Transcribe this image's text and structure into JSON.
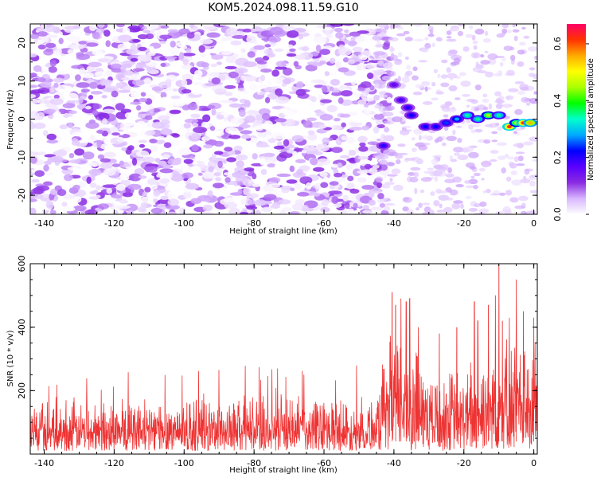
{
  "chart_data": [
    {
      "type": "heatmap",
      "title": "KOM5.2024.098.11.59.G10",
      "xlabel": "Height of straight line (km)",
      "ylabel": "Frequency (Hz)",
      "xlim": [
        -144,
        1
      ],
      "ylim": [
        -25,
        25
      ],
      "xticks": [
        "-140",
        "-120",
        "-100",
        "-80",
        "-60",
        "-40",
        "-20",
        "0"
      ],
      "yticks": [
        "-20",
        "-10",
        "0",
        "10",
        "20"
      ],
      "colorbar": {
        "label": "Normalized spectral amplitude",
        "range": [
          0.0,
          0.67
        ],
        "ticks": [
          "0.0",
          "0.2",
          "0.4",
          "0.6"
        ],
        "colormap": [
          "#ffffff",
          "#d8b6ff",
          "#8a2be2",
          "#5a00ff",
          "#0000ff",
          "#00aaff",
          "#00ffcc",
          "#00ff00",
          "#aaff00",
          "#ffff00",
          "#ffaa00",
          "#ff3300",
          "#ff0066"
        ]
      },
      "noise_region": {
        "x": [
          -144,
          -45
        ],
        "typical_amplitude": [
          0.0,
          0.12
        ]
      },
      "signal_track": [
        {
          "x": -43,
          "y": -7,
          "value": 0.2
        },
        {
          "x": -40,
          "y": 9,
          "value": 0.16
        },
        {
          "x": -38,
          "y": 5,
          "value": 0.18
        },
        {
          "x": -36,
          "y": 3,
          "value": 0.2
        },
        {
          "x": -35,
          "y": 1,
          "value": 0.22
        },
        {
          "x": -31,
          "y": -2,
          "value": 0.22
        },
        {
          "x": -28,
          "y": -2,
          "value": 0.22
        },
        {
          "x": -25,
          "y": -1,
          "value": 0.24
        },
        {
          "x": -22,
          "y": 0,
          "value": 0.28
        },
        {
          "x": -19,
          "y": 1,
          "value": 0.35
        },
        {
          "x": -16,
          "y": 0,
          "value": 0.35
        },
        {
          "x": -13,
          "y": 1,
          "value": 0.45
        },
        {
          "x": -10,
          "y": 1,
          "value": 0.35
        },
        {
          "x": -7,
          "y": -2,
          "value": 0.62
        },
        {
          "x": -5,
          "y": -1,
          "value": 0.45
        },
        {
          "x": -3,
          "y": -1,
          "value": 0.62
        },
        {
          "x": -1,
          "y": -1,
          "value": 0.55
        }
      ]
    },
    {
      "type": "line",
      "xlabel": "Height of straight line (km)",
      "ylabel": "SNR (10 * v/v)",
      "xlim": [
        -144,
        1
      ],
      "ylim": [
        0,
        600
      ],
      "xticks": [
        "-140",
        "-120",
        "-100",
        "-80",
        "-60",
        "-40",
        "-20",
        "0"
      ],
      "yticks": [
        "200",
        "400",
        "600"
      ],
      "color": "#ee3333",
      "baseline_level": {
        "x": [
          -144,
          -45
        ],
        "typical": [
          20,
          180
        ],
        "max": 290
      },
      "envelope": [
        {
          "x": -144,
          "typical_max": 190
        },
        {
          "x": -45,
          "typical_max": 200
        },
        {
          "x": -41,
          "typical_max": 420
        },
        {
          "x": -35,
          "typical_max": 430
        },
        {
          "x": -30,
          "typical_max": 300
        },
        {
          "x": -20,
          "typical_max": 300
        },
        {
          "x": -10,
          "typical_max": 420
        },
        {
          "x": 1,
          "typical_max": 380
        }
      ],
      "peaks": [
        {
          "x": -40.5,
          "y": 510
        },
        {
          "x": -39.5,
          "y": 470
        },
        {
          "x": -38,
          "y": 490
        },
        {
          "x": -36.5,
          "y": 480
        },
        {
          "x": -35.5,
          "y": 490
        },
        {
          "x": -33,
          "y": 400
        },
        {
          "x": -17,
          "y": 480
        },
        {
          "x": -16,
          "y": 420
        },
        {
          "x": -13,
          "y": 470
        },
        {
          "x": -11,
          "y": 500
        },
        {
          "x": -10,
          "y": 610
        },
        {
          "x": -9,
          "y": 420
        },
        {
          "x": -7,
          "y": 430
        },
        {
          "x": -5,
          "y": 550
        },
        {
          "x": -3,
          "y": 450
        },
        {
          "x": 0,
          "y": 430
        },
        {
          "x": -22,
          "y": 400
        },
        {
          "x": -27,
          "y": 380
        }
      ]
    }
  ]
}
